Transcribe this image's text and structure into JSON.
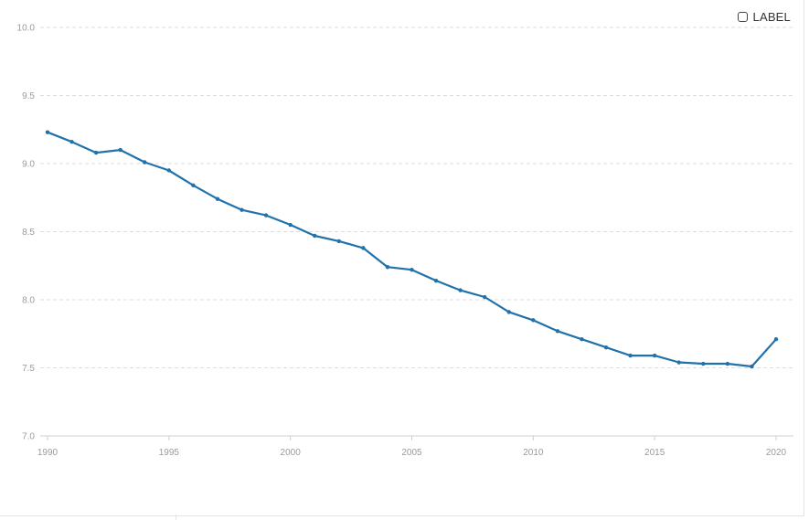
{
  "legend": {
    "toggle_label": "LABEL"
  },
  "colors": {
    "series": "#2172ab",
    "grid": "#dcdcdc",
    "tick_text": "#9a9a9a"
  },
  "chart_data": {
    "type": "line",
    "title": "",
    "xlabel": "",
    "ylabel": "",
    "xlim": [
      1990,
      2020
    ],
    "ylim": [
      7.0,
      10.0
    ],
    "yticks": [
      "10.0",
      "9.5",
      "9.0",
      "8.5",
      "8.0",
      "7.5",
      "7.0"
    ],
    "xticks": [
      "1990",
      "1995",
      "2000",
      "2005",
      "2010",
      "2015",
      "2020"
    ],
    "grid": true,
    "legend_position": "top-right",
    "series": [
      {
        "x": [
          1990,
          1991,
          1992,
          1993,
          1994,
          1995,
          1996,
          1997,
          1998,
          1999,
          2000,
          2001,
          2002,
          2003,
          2004,
          2005,
          2006,
          2007,
          2008,
          2009,
          2010,
          2011,
          2012,
          2013,
          2014,
          2015,
          2016,
          2017,
          2018,
          2019,
          2020
        ],
        "values": [
          9.23,
          9.16,
          9.08,
          9.1,
          9.01,
          8.95,
          8.84,
          8.74,
          8.66,
          8.62,
          8.55,
          8.47,
          8.43,
          8.38,
          8.24,
          8.22,
          8.14,
          8.07,
          8.02,
          7.91,
          7.85,
          7.77,
          7.71,
          7.65,
          7.59,
          7.59,
          7.54,
          7.53,
          7.53,
          7.51,
          7.71
        ]
      }
    ]
  }
}
